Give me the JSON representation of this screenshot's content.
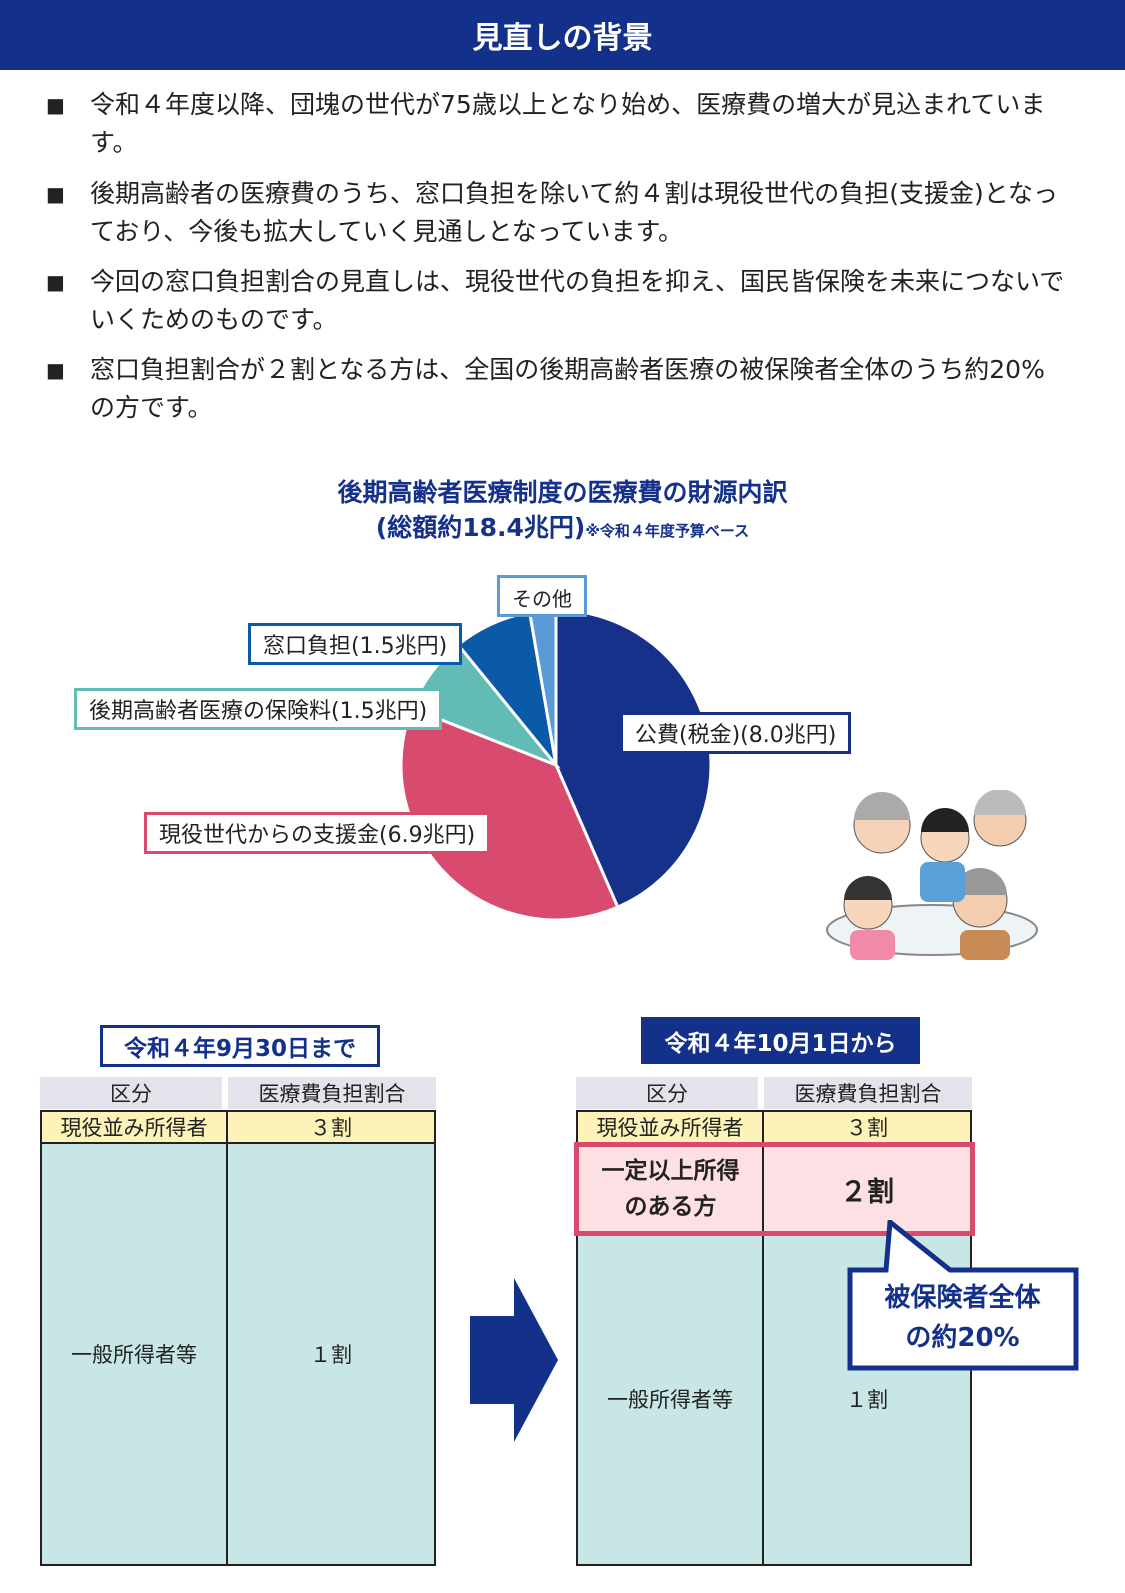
{
  "header": {
    "title": "見直しの背景"
  },
  "bullets": [
    {
      "mark": "■",
      "text": "令和４年度以降、団塊の世代が75歳以上となり始め、医療費の増大が見込まれています。"
    },
    {
      "mark": "■",
      "text": "後期高齢者の医療費のうち、窓口負担を除いて約４割は現役世代の負担(支援金)となっており、今後も拡大していく見通しとなっています。"
    },
    {
      "mark": "■",
      "text": "今回の窓口負担割合の見直しは、現役世代の負担を抑え、国民皆保険を未来につないでいくためのものです。"
    },
    {
      "mark": "■",
      "text": "窓口負担割合が２割となる方は、全国の後期高齢者医療の被保険者全体のうち約20%の方です。"
    }
  ],
  "chart_data": {
    "type": "pie",
    "title": "後期高齢者医療制度の医療費の財源内訳",
    "subtitle": "(総額約18.4兆円)",
    "note": "※令和４年度予算ベース",
    "unit": "兆円",
    "slices": [
      {
        "label": "公費(税金)(8.0兆円)",
        "value": 8.0,
        "color": "#16318a"
      },
      {
        "label": "現役世代からの支援金(6.9兆円)",
        "value": 6.9,
        "color": "#d94b6e"
      },
      {
        "label": "後期高齢者医療の保険料(1.5兆円)",
        "value": 1.5,
        "color": "#63bbb5"
      },
      {
        "label": "窓口負担(1.5兆円)",
        "value": 1.5,
        "color": "#0b5aa8"
      },
      {
        "label": "その他",
        "value": 0.5,
        "color": "#5b9bd5"
      }
    ]
  },
  "before": {
    "date": "令和４年9月30日まで",
    "headers": [
      "区分",
      "医療費負担割合"
    ],
    "rows": [
      [
        "現役並み所得者",
        "３割"
      ],
      [
        "一般所得者等",
        "１割"
      ]
    ]
  },
  "after": {
    "date": "令和４年10月1日から",
    "headers": [
      "区分",
      "医療費負担割合"
    ],
    "rows": [
      [
        "現役並み所得者",
        "３割"
      ],
      [
        "一定以上所得のある方",
        "２割"
      ],
      [
        "一般所得者等",
        "１割"
      ]
    ],
    "callout_line1": "被保険者全体",
    "callout_line2": "の約20%"
  },
  "colors": {
    "navy": "#13318a",
    "pink": "#d94b6e",
    "teal_cell": "#c8e6e6",
    "yellow_cell": "#fdf2b8"
  }
}
